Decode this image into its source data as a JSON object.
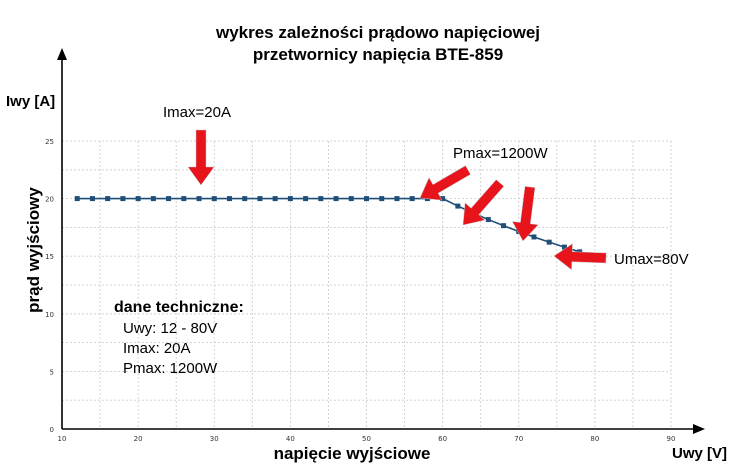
{
  "chart_data": {
    "type": "line",
    "title_lines": [
      "wykres zależności prądowo napięciowej",
      "przetwornicy napięcia BTE-859"
    ],
    "y_unit": "Iwy [A]",
    "x_unit": "Uwy [V]",
    "ylabel": "prąd wyjściowy",
    "xlabel": "napięcie wyjściowe",
    "xlim": [
      10,
      90
    ],
    "ylim": [
      0,
      25
    ],
    "x_ticks": [
      "10",
      "20",
      "30",
      "40",
      "50",
      "60",
      "70",
      "80",
      "90"
    ],
    "y_ticks": [
      "0",
      "5",
      "10",
      "15",
      "20",
      "25"
    ],
    "grid": true,
    "series": [
      {
        "color": "#1f4e79",
        "x": [
          12,
          14,
          16,
          18,
          20,
          22,
          24,
          26,
          28,
          30,
          32,
          34,
          36,
          38,
          40,
          42,
          44,
          46,
          48,
          50,
          52,
          54,
          56,
          58,
          60,
          62,
          64,
          66,
          68,
          70,
          72,
          74,
          76,
          78,
          80
        ],
        "y": [
          20,
          20,
          20,
          20,
          20,
          20,
          20,
          20,
          20,
          20,
          20,
          20,
          20,
          20,
          20,
          20,
          20,
          20,
          20,
          20,
          20,
          20,
          20,
          20,
          20,
          19.35,
          18.75,
          18.18,
          17.65,
          17.14,
          16.67,
          16.22,
          15.79,
          15.38,
          15.0
        ]
      }
    ],
    "annotations": [
      {
        "text": "Imax=20A",
        "x": 30,
        "y": 20
      },
      {
        "text": "Pmax=1200W",
        "x": 68,
        "y": 17.5
      },
      {
        "text": "Umax=80V",
        "x": 80,
        "y": 15
      }
    ],
    "technical_data": {
      "heading": "dane techniczne:",
      "lines": [
        "Uwy: 12 - 80V",
        "Imax: 20A",
        "Pmax: 1200W"
      ]
    },
    "arrow_color": "#e8141c"
  }
}
